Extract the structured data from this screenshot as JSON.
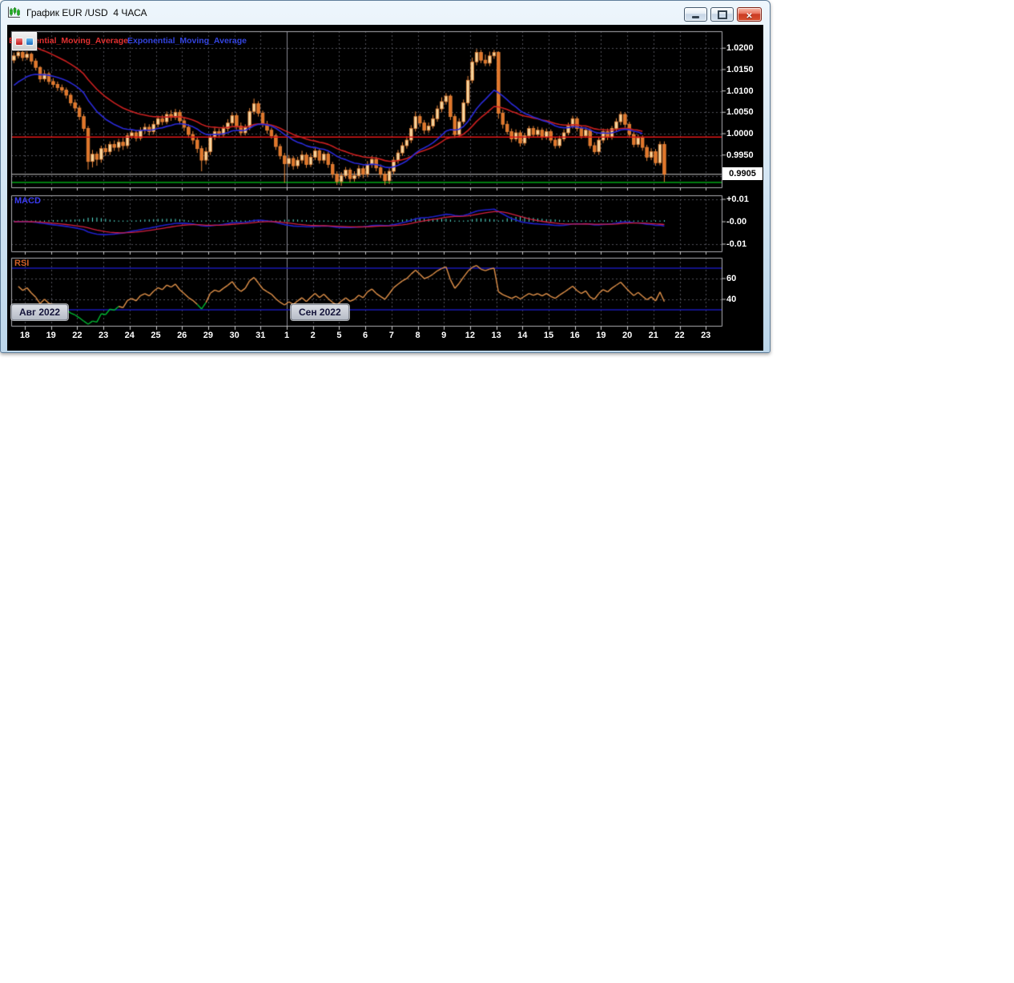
{
  "window": {
    "title": "График EUR /USD  4 ЧАСА",
    "buttons": [
      {
        "icon": "minimize-icon"
      },
      {
        "icon": "maximize-icon"
      },
      {
        "icon": "close-icon"
      }
    ],
    "app_icon": "candlestick-chart-icon"
  },
  "chart_data": {
    "type": "candlestick",
    "symbol": "EUR/USD",
    "timeframe": "4 ЧАСА",
    "candles_per_day": 6,
    "x_labels": [
      "18",
      "19",
      "22",
      "23",
      "24",
      "25",
      "26",
      "29",
      "30",
      "31",
      "1",
      "2",
      "5",
      "6",
      "7",
      "8",
      "9",
      "12",
      "13",
      "14",
      "15",
      "16",
      "19",
      "20",
      "21",
      "22",
      "23"
    ],
    "month_markers": [
      {
        "label": "Авг 2022",
        "day_index": 0
      },
      {
        "label": "Сен 2022",
        "day_index": 10
      }
    ],
    "price_axis": {
      "ticks": [
        "1.0200",
        "1.0150",
        "1.0100",
        "1.0050",
        "1.0000",
        "0.9950"
      ],
      "current": "0.9905"
    },
    "hlines": [
      {
        "name": "balance-line",
        "value": 0.9992,
        "color": "#e01616"
      },
      {
        "name": "current-price-line",
        "value": 0.9905,
        "color": "#c8c8c8"
      },
      {
        "name": "support-line",
        "value": 0.9886,
        "color": "#00c818"
      }
    ],
    "colors": {
      "candle_up": "#f6d7a0",
      "candle_down": "#e1762a",
      "candle_line": "#e8853a",
      "grid": "#50505a",
      "month_line": "#8a8a94",
      "pane_border": "#b0b0b6",
      "tick": "#c8c8c8"
    },
    "indicators": {
      "ema_slow": {
        "label": "Exponential_Moving_Average",
        "period": 30,
        "seed": 1.0215,
        "color": "#cc2020"
      },
      "ema_fast": {
        "label": "Exponential_Moving_Average",
        "period": 18,
        "seed": 1.0105,
        "color": "#2a2ad8"
      },
      "macd": {
        "label": "MACD",
        "fast": 12,
        "slow": 26,
        "signal": 9,
        "ticks": [
          "+0.01",
          "-0.00",
          "-0.01"
        ],
        "line_color": "#2020cc",
        "signal_color": "#d42040",
        "hist_color": "#57e8d8"
      },
      "rsi": {
        "label": "RSI",
        "period": 14,
        "ticks": [
          "60",
          "40"
        ],
        "levels": [
          70,
          30
        ],
        "level_color": "#1919b4",
        "color": "#e2924a",
        "oversold_color": "#00bb33",
        "oversold_threshold": 32
      }
    },
    "candles": [
      [
        1.0172,
        1.019,
        1.0165,
        1.0182
      ],
      [
        1.0182,
        1.0198,
        1.0176,
        1.019
      ],
      [
        1.019,
        1.0195,
        1.017,
        1.0178
      ],
      [
        1.0178,
        1.0193,
        1.0172,
        1.0186
      ],
      [
        1.0186,
        1.019,
        1.0162,
        1.017
      ],
      [
        1.017,
        1.0176,
        1.0148,
        1.0155
      ],
      [
        1.0155,
        1.0158,
        1.012,
        1.0128
      ],
      [
        1.0128,
        1.0148,
        1.0122,
        1.014
      ],
      [
        1.014,
        1.0145,
        1.0115,
        1.0122
      ],
      [
        1.0122,
        1.013,
        1.0108,
        1.0115
      ],
      [
        1.0115,
        1.0122,
        1.01,
        1.0108
      ],
      [
        1.0108,
        1.0115,
        1.0095,
        1.0102
      ],
      [
        1.0102,
        1.0108,
        1.0082,
        1.009
      ],
      [
        1.009,
        1.0095,
        1.0065,
        1.0072
      ],
      [
        1.0072,
        1.008,
        1.0052,
        1.006
      ],
      [
        1.006,
        1.0066,
        1.0032,
        1.004
      ],
      [
        1.004,
        1.0046,
        1.0005,
        1.0012
      ],
      [
        1.0012,
        1.0018,
        0.9916,
        0.9935
      ],
      [
        0.9935,
        0.9962,
        0.9921,
        0.9952
      ],
      [
        0.9952,
        0.9958,
        0.9925,
        0.994
      ],
      [
        0.994,
        0.9972,
        0.9932,
        0.9965
      ],
      [
        0.9965,
        0.9975,
        0.9948,
        0.9958
      ],
      [
        0.9958,
        0.9982,
        0.995,
        0.9975
      ],
      [
        0.9975,
        0.9984,
        0.996,
        0.9968
      ],
      [
        0.9968,
        0.9988,
        0.9958,
        0.998
      ],
      [
        0.998,
        0.999,
        0.9962,
        0.9972
      ],
      [
        0.9972,
        1.0002,
        0.9965,
        0.9995
      ],
      [
        0.9995,
        1.001,
        0.9988,
        1.0002
      ],
      [
        1.0002,
        1.0008,
        0.9982,
        0.999
      ],
      [
        0.999,
        1.0015,
        0.9984,
        1.0008
      ],
      [
        1.0008,
        1.0024,
        1.0,
        1.0015
      ],
      [
        1.0015,
        1.0022,
        0.9996,
        1.0005
      ],
      [
        1.0005,
        1.003,
        0.9998,
        1.0022
      ],
      [
        1.0022,
        1.0042,
        1.0015,
        1.0035
      ],
      [
        1.0035,
        1.0044,
        1.002,
        1.0028
      ],
      [
        1.0028,
        1.0052,
        1.0022,
        1.0045
      ],
      [
        1.0045,
        1.0055,
        1.003,
        1.0038
      ],
      [
        1.0038,
        1.0058,
        1.0032,
        1.005
      ],
      [
        1.005,
        1.0056,
        1.0022,
        1.003
      ],
      [
        1.003,
        1.0038,
        1.0006,
        1.0015
      ],
      [
        1.0015,
        1.0022,
        0.999,
        0.9998
      ],
      [
        0.9998,
        1.0006,
        0.9975,
        0.9985
      ],
      [
        0.9985,
        0.9992,
        0.9955,
        0.9965
      ],
      [
        0.9965,
        0.9972,
        0.9912,
        0.9938
      ],
      [
        0.9938,
        0.9968,
        0.9928,
        0.9958
      ],
      [
        0.9958,
        1.0,
        0.995,
        0.9992
      ],
      [
        0.9992,
        1.0014,
        0.9985,
        1.0005
      ],
      [
        1.0005,
        1.0012,
        0.999,
        0.9998
      ],
      [
        0.9998,
        1.002,
        0.9992,
        1.0012
      ],
      [
        1.0012,
        1.0034,
        1.0005,
        1.0025
      ],
      [
        1.0025,
        1.005,
        1.0018,
        1.0042
      ],
      [
        1.0042,
        1.0048,
        1.001,
        1.0018
      ],
      [
        1.0018,
        1.0026,
        0.9995,
        1.0002
      ],
      [
        1.0002,
        1.0022,
        0.9996,
        1.0015
      ],
      [
        1.0015,
        1.006,
        1.0008,
        1.0052
      ],
      [
        1.0052,
        1.0082,
        1.0045,
        1.007
      ],
      [
        1.007,
        1.0076,
        1.004,
        1.0048
      ],
      [
        1.0048,
        1.0054,
        1.0015,
        1.0022
      ],
      [
        1.0022,
        1.003,
        1.0,
        1.0008
      ],
      [
        1.0008,
        1.0014,
        0.9988,
        0.9995
      ],
      [
        0.9995,
        1.0,
        0.9962,
        0.997
      ],
      [
        0.997,
        0.9976,
        0.994,
        0.9948
      ],
      [
        0.9948,
        0.9955,
        0.9885,
        0.993
      ],
      [
        0.993,
        0.995,
        0.9922,
        0.9942
      ],
      [
        0.9942,
        0.9948,
        0.9916,
        0.9925
      ],
      [
        0.9925,
        0.9946,
        0.9918,
        0.9938
      ],
      [
        0.9938,
        0.996,
        0.993,
        0.995
      ],
      [
        0.995,
        0.9956,
        0.992,
        0.9928
      ],
      [
        0.9928,
        0.9954,
        0.9922,
        0.9945
      ],
      [
        0.9945,
        0.9968,
        0.9938,
        0.996
      ],
      [
        0.996,
        0.9966,
        0.993,
        0.9938
      ],
      [
        0.9938,
        0.9958,
        0.993,
        0.9952
      ],
      [
        0.9952,
        0.9958,
        0.992,
        0.9928
      ],
      [
        0.9928,
        0.9934,
        0.9896,
        0.9905
      ],
      [
        0.9905,
        0.9912,
        0.988,
        0.9888
      ],
      [
        0.9888,
        0.991,
        0.9878,
        0.9902
      ],
      [
        0.9902,
        0.9922,
        0.9895,
        0.9915
      ],
      [
        0.9915,
        0.992,
        0.9886,
        0.9895
      ],
      [
        0.9895,
        0.9912,
        0.9888,
        0.9902
      ],
      [
        0.9902,
        0.9926,
        0.9895,
        0.9918
      ],
      [
        0.9918,
        0.9924,
        0.9896,
        0.9905
      ],
      [
        0.9905,
        0.9936,
        0.9898,
        0.9928
      ],
      [
        0.9928,
        0.9948,
        0.992,
        0.994
      ],
      [
        0.994,
        0.9946,
        0.9912,
        0.992
      ],
      [
        0.992,
        0.9928,
        0.9896,
        0.9905
      ],
      [
        0.9905,
        0.9912,
        0.988,
        0.989
      ],
      [
        0.989,
        0.992,
        0.9882,
        0.9912
      ],
      [
        0.9912,
        0.9946,
        0.9905,
        0.9938
      ],
      [
        0.9938,
        0.9962,
        0.993,
        0.9955
      ],
      [
        0.9955,
        0.998,
        0.9948,
        0.9972
      ],
      [
        0.9972,
        0.9994,
        0.9965,
        0.9985
      ],
      [
        0.9985,
        1.002,
        0.9978,
        1.0012
      ],
      [
        1.0012,
        1.0052,
        1.0005,
        1.004
      ],
      [
        1.004,
        1.0046,
        1.0016,
        1.0025
      ],
      [
        1.0025,
        1.0032,
        1.0,
        1.0008
      ],
      [
        1.0008,
        1.0026,
        1.0002,
        1.0018
      ],
      [
        1.0018,
        1.0044,
        1.0012,
        1.0035
      ],
      [
        1.0035,
        1.0066,
        1.0028,
        1.0058
      ],
      [
        1.0058,
        1.0085,
        1.005,
        1.0075
      ],
      [
        1.0075,
        1.0095,
        1.0068,
        1.0088
      ],
      [
        1.0088,
        1.0092,
        1.0032,
        1.004
      ],
      [
        1.004,
        1.0046,
        0.999,
        0.9998
      ],
      [
        0.9998,
        1.0036,
        0.9992,
        1.0028
      ],
      [
        1.0028,
        1.008,
        1.0022,
        1.0072
      ],
      [
        1.0072,
        1.0135,
        1.0065,
        1.0125
      ],
      [
        1.0125,
        1.0178,
        1.0118,
        1.0168
      ],
      [
        1.0168,
        1.0198,
        1.016,
        1.019
      ],
      [
        1.019,
        1.0196,
        1.0165,
        1.0172
      ],
      [
        1.0172,
        1.0185,
        1.0158,
        1.0165
      ],
      [
        1.0165,
        1.0192,
        1.0158,
        1.0182
      ],
      [
        1.0182,
        1.0196,
        1.0175,
        1.019
      ],
      [
        1.019,
        1.0193,
        1.0035,
        1.0048
      ],
      [
        1.0048,
        1.0056,
        1.0012,
        1.0022
      ],
      [
        1.0022,
        1.003,
        0.9998,
        1.0005
      ],
      [
        1.0005,
        1.0012,
        0.998,
        0.9988
      ],
      [
        0.9988,
        1.001,
        0.9982,
        1.0002
      ],
      [
        1.0002,
        1.0008,
        0.997,
        0.9978
      ],
      [
        0.9978,
        1.0002,
        0.9972,
        0.9995
      ],
      [
        0.9995,
        1.0018,
        0.9988,
        1.0012
      ],
      [
        1.0012,
        1.0018,
        0.9992,
        0.9998
      ],
      [
        0.9998,
        1.0016,
        0.9992,
        1.0008
      ],
      [
        1.0008,
        1.0014,
        0.9985,
        0.9992
      ],
      [
        0.9992,
        1.0012,
        0.9986,
        1.0005
      ],
      [
        1.0005,
        1.001,
        0.9978,
        0.9985
      ],
      [
        0.9985,
        0.9992,
        0.9965,
        0.9972
      ],
      [
        0.9972,
        0.9995,
        0.9966,
        0.9988
      ],
      [
        0.9988,
        1.001,
        0.9982,
        1.0002
      ],
      [
        1.0002,
        1.0026,
        0.9996,
        1.0018
      ],
      [
        1.0018,
        1.0042,
        1.0012,
        1.0035
      ],
      [
        1.0035,
        1.004,
        1.0005,
        1.0012
      ],
      [
        1.0012,
        1.0018,
        0.9988,
        0.9995
      ],
      [
        0.9995,
        1.0015,
        0.999,
        1.0008
      ],
      [
        1.0008,
        1.0012,
        0.9965,
        0.9972
      ],
      [
        0.9972,
        0.998,
        0.9952,
        0.9958
      ],
      [
        0.9958,
        0.9992,
        0.995,
        0.9985
      ],
      [
        0.9985,
        1.0012,
        0.9978,
        1.0005
      ],
      [
        1.0005,
        1.0012,
        0.9985,
        0.9992
      ],
      [
        0.9992,
        1.0018,
        0.9986,
        1.0012
      ],
      [
        1.0012,
        1.0036,
        1.0005,
        1.0028
      ],
      [
        1.0028,
        1.0052,
        1.002,
        1.0045
      ],
      [
        1.0045,
        1.005,
        1.0014,
        1.0022
      ],
      [
        1.0022,
        1.0028,
        0.999,
        0.9998
      ],
      [
        0.9998,
        1.0004,
        0.9968,
        0.9975
      ],
      [
        0.9975,
        0.9998,
        0.9968,
        0.999
      ],
      [
        0.999,
        0.9996,
        0.996,
        0.9968
      ],
      [
        0.9968,
        0.9974,
        0.9936,
        0.9945
      ],
      [
        0.9945,
        0.9966,
        0.9938,
        0.9958
      ],
      [
        0.9958,
        0.9964,
        0.9925,
        0.9932
      ],
      [
        0.9932,
        0.9982,
        0.9926,
        0.9975
      ],
      [
        0.9975,
        0.9982,
        0.9887,
        0.9905
      ]
    ]
  }
}
